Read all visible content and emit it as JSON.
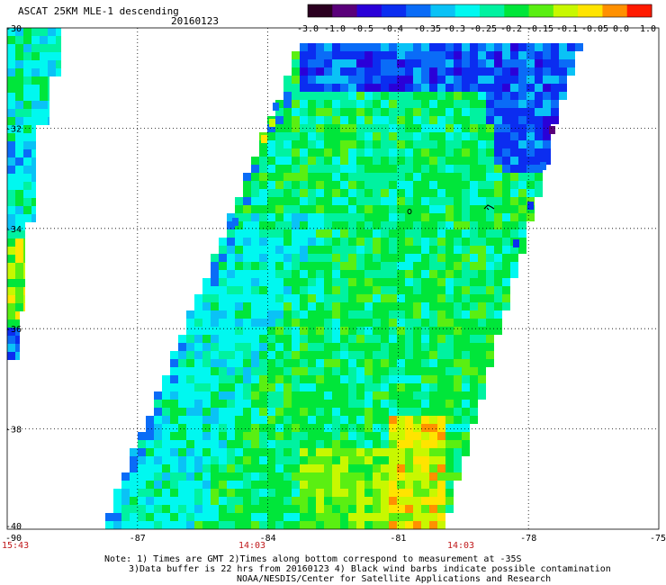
{
  "title": "ASCAT 25KM MLE-1 descending",
  "date": "20160123",
  "colorbar": {
    "labels": [
      "-3.0",
      "-1.0",
      "-0.5",
      "-0.4",
      "-0.35",
      "-0.3",
      "-0.25",
      "-0.2",
      "-0.15",
      "-0.1",
      "-0.05",
      "0.0",
      "1.0"
    ],
    "colors": [
      "#2b0020",
      "#5a007a",
      "#2a00d8",
      "#0b2df0",
      "#0a6cf7",
      "#0ac2f6",
      "#00f8f0",
      "#00f2a0",
      "#00e63a",
      "#5aef12",
      "#c8f800",
      "#ffe400",
      "#ff9000",
      "#ff1a00"
    ]
  },
  "lat_labels": [
    "-30",
    "-32",
    "-34",
    "-36",
    "-38",
    "-40"
  ],
  "lon_labels": [
    "-90",
    "-87",
    "-84",
    "-81",
    "-78",
    "-75"
  ],
  "time_labels": [
    "15:43",
    "14:03",
    "14:03"
  ],
  "time_color": "#c0191b",
  "notes": [
    "Note: 1) Times are GMT 2)Times along bottom correspond to measurement at -35S",
    "3)Data buffer is 22 hrs from 20160123 4) Black wind barbs indicate possible contamination",
    "NOAA/NESDIS/Center for Satellite Applications and Research"
  ]
}
